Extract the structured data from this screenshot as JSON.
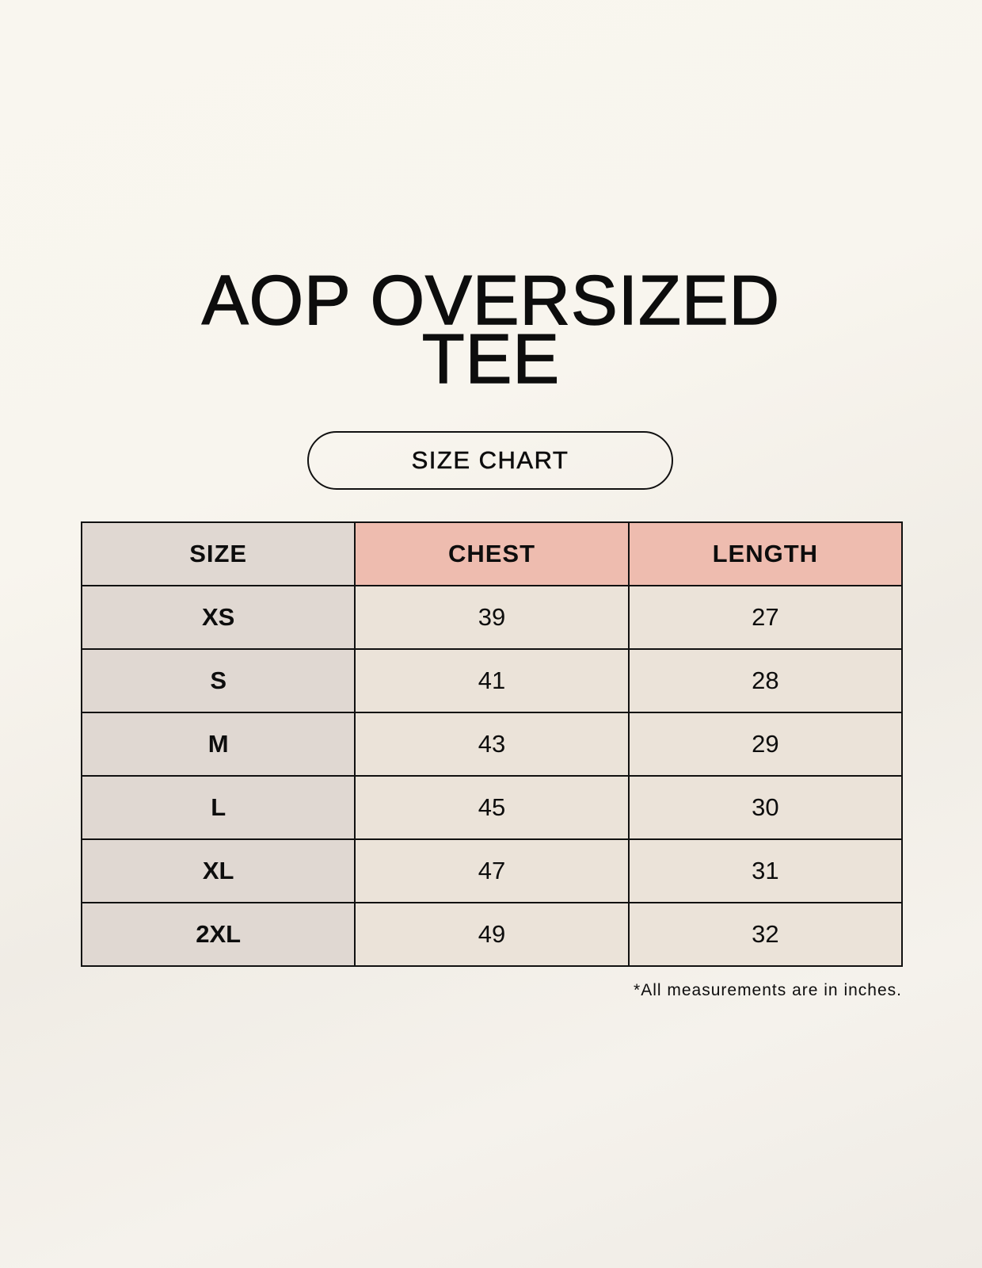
{
  "title": {
    "line1": "AOP OVERSIZED",
    "line2": "TEE"
  },
  "badge": "SIZE CHART",
  "table": {
    "headers": [
      "SIZE",
      "CHEST",
      "LENGTH"
    ],
    "rows": [
      [
        "XS",
        "39",
        "27"
      ],
      [
        "S",
        "41",
        "28"
      ],
      [
        "M",
        "43",
        "29"
      ],
      [
        "L",
        "45",
        "30"
      ],
      [
        "XL",
        "47",
        "31"
      ],
      [
        "2XL",
        "49",
        "32"
      ]
    ]
  },
  "footnote": "*All measurements are in inches.",
  "colors": {
    "size_column": "#e0d8d2",
    "header_accent": "#eebcaf",
    "cell": "#ebe3d9"
  }
}
